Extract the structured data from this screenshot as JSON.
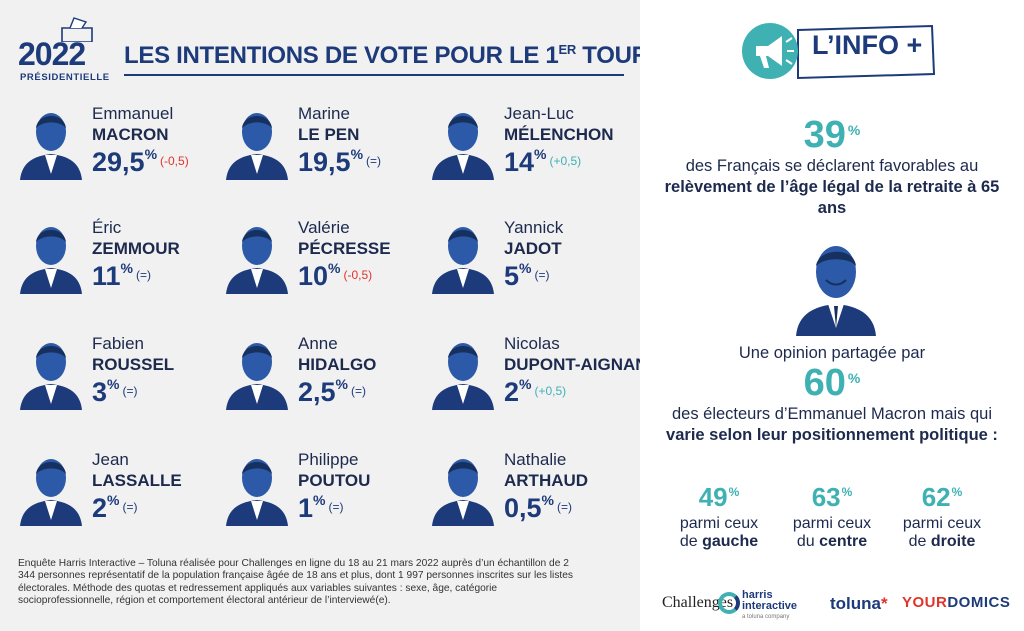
{
  "header": {
    "logo_year": "2022",
    "logo_sub": "PRÉSIDENTIELLE",
    "title_main": "LES INTENTIONS DE VOTE POUR LE 1",
    "title_sup": "ER",
    "title_end": " TOUR"
  },
  "candidates": [
    {
      "first": "Emmanuel",
      "last": "MACRON",
      "pct": "29,5",
      "delta": "(-0,5)",
      "delta_type": "neg"
    },
    {
      "first": "Marine",
      "last": "LE PEN",
      "pct": "19,5",
      "delta": "(=)",
      "delta_type": "eq"
    },
    {
      "first": "Jean-Luc",
      "last": "MÉLENCHON",
      "pct": "14",
      "delta": "(+0,5)",
      "delta_type": "pos"
    },
    {
      "first": "Éric",
      "last": "ZEMMOUR",
      "pct": "11",
      "delta": "(=)",
      "delta_type": "eq"
    },
    {
      "first": "Valérie",
      "last": "PÉCRESSE",
      "pct": "10",
      "delta": "(-0,5)",
      "delta_type": "neg"
    },
    {
      "first": "Yannick",
      "last": "JADOT",
      "pct": "5",
      "delta": "(=)",
      "delta_type": "eq"
    },
    {
      "first": "Fabien",
      "last": "ROUSSEL",
      "pct": "3",
      "delta": "(=)",
      "delta_type": "eq"
    },
    {
      "first": "Anne",
      "last": "HIDALGO",
      "pct": "2,5",
      "delta": "(=)",
      "delta_type": "eq"
    },
    {
      "first": "Nicolas",
      "last": "DUPONT-AIGNAN",
      "pct": "2",
      "delta": "(+0,5)",
      "delta_type": "pos"
    },
    {
      "first": "Jean",
      "last": "LASSALLE",
      "pct": "2",
      "delta": "(=)",
      "delta_type": "eq"
    },
    {
      "first": "Philippe",
      "last": "POUTOU",
      "pct": "1",
      "delta": "(=)",
      "delta_type": "eq"
    },
    {
      "first": "Nathalie",
      "last": "ARTHAUD",
      "pct": "0,5",
      "delta": "(=)",
      "delta_type": "eq"
    }
  ],
  "pct_sign": "%",
  "footnote": "Enquête Harris Interactive – Toluna réalisée pour Challenges en ligne du 18 au 21 mars 2022 auprès d’un échantillon de 2 344 personnes représentatif de la population française âgée de 18 ans et plus, dont 1 997 personnes inscrites sur les listes électorales. Méthode des quotas et redressement appliqués aux variables suivantes : sexe, âge, catégorie socioprofessionnelle, région et comportement électoral antérieur de l’interviewé(e).",
  "info": {
    "badge": "L’INFO +",
    "stat1": "39",
    "text1_a": "des Français se déclarent favorables au ",
    "text1_b": "relèvement de l’âge légal de la retraite à 65 ans",
    "text2": "Une opinion partagée par",
    "stat2": "60",
    "text3_a": "des électeurs d’Emmanuel Macron mais qui ",
    "text3_b": "varie selon leur positionnement politique :",
    "breakdown": [
      {
        "value": "49",
        "line1": "parmi ceux",
        "prefix": "de ",
        "bold": "gauche"
      },
      {
        "value": "63",
        "line1": "parmi ceux",
        "prefix": "du ",
        "bold": "centre"
      },
      {
        "value": "62",
        "line1": "parmi ceux",
        "prefix": "de ",
        "bold": "droite"
      }
    ]
  },
  "logos": {
    "challenges": "Challenges",
    "harris_1": "harris",
    "harris_2": "interactive",
    "harris_3": "a toluna company",
    "toluna": "toluna",
    "toluna_star": "*",
    "yourdomics_a": "YOUR",
    "yourdomics_b": "DOMICS"
  },
  "colors": {
    "navy": "#1d3a7a",
    "teal": "#3fb1b3",
    "red": "#e2332a",
    "panel": "#f1f1f2"
  }
}
